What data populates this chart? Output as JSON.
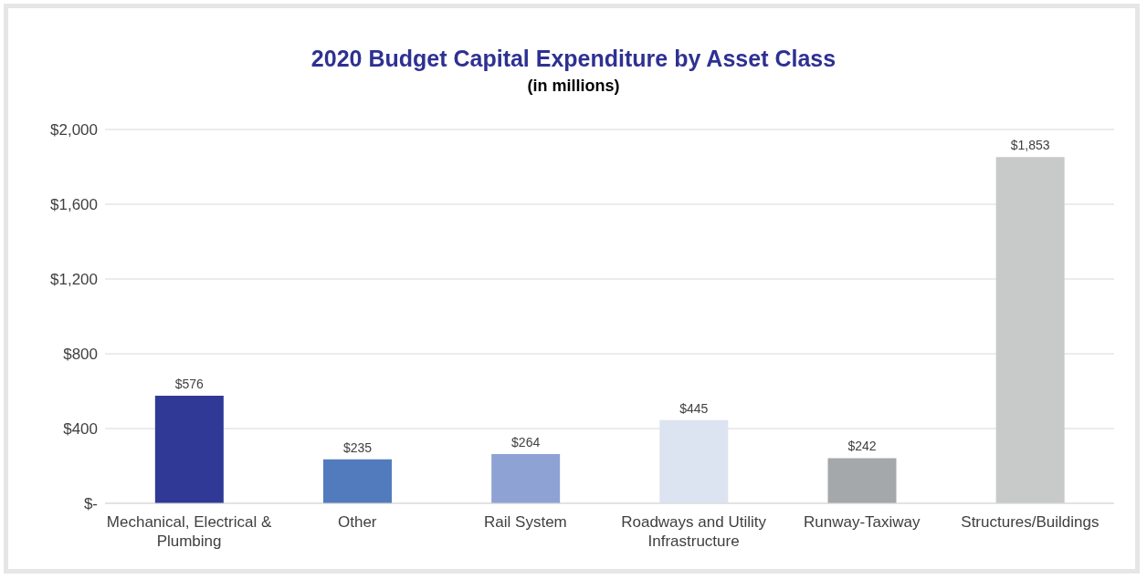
{
  "chart_data": {
    "type": "bar",
    "title": "2020 Budget Capital Expenditure by Asset Class",
    "subtitle": "(in millions)",
    "categories": [
      "Mechanical, Electrical & Plumbing",
      "Other",
      "Rail System",
      "Roadways and Utility Infrastructure",
      "Runway-Taxiway",
      "Structures/Buildings"
    ],
    "values": [
      576,
      235,
      264,
      445,
      242,
      1853
    ],
    "colors": [
      "#303a96",
      "#527bbd",
      "#8ea2d4",
      "#dce3f1",
      "#a5a8aa",
      "#c8c9c9"
    ],
    "value_labels": [
      "$576",
      "$235",
      "$264",
      "$445",
      "$242",
      "$1,853"
    ],
    "ylim": [
      0,
      2000
    ],
    "yticks": [
      {
        "value": 0,
        "label": "$-"
      },
      {
        "value": 400,
        "label": "$400"
      },
      {
        "value": 800,
        "label": "$800"
      },
      {
        "value": 1200,
        "label": "$1,200"
      },
      {
        "value": 1600,
        "label": "$1,600"
      },
      {
        "value": 2000,
        "label": "$2,000"
      }
    ],
    "grid": "y"
  }
}
